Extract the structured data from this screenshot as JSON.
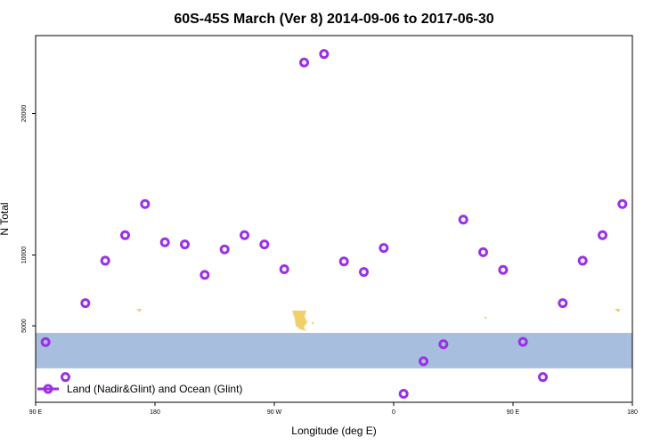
{
  "chart_data": {
    "type": "scatter",
    "title": "60S-45S March (Ver 8)   2014-09-06 to 2017-06-30",
    "xlabel": "Longitude (deg E)",
    "ylabel": "N Total",
    "xlim": [
      90,
      540
    ],
    "ylim": [
      -400,
      25500
    ],
    "x_ticks": [
      {
        "value": 90,
        "label": "90 E"
      },
      {
        "value": 180,
        "label": "180"
      },
      {
        "value": 270,
        "label": "90 W"
      },
      {
        "value": 360,
        "label": "0"
      },
      {
        "value": 450,
        "label": "90 E"
      },
      {
        "value": 540,
        "label": "180"
      }
    ],
    "y_ticks": [
      {
        "value": 5000,
        "label": "5000"
      },
      {
        "value": 10000,
        "label": "10000"
      },
      {
        "value": 20000,
        "label": "20000"
      }
    ],
    "grid": false,
    "legend_position": "bottom-left",
    "series": [
      {
        "name": "Land (Nadir&Glint) and Ocean (Glint)",
        "color": "#9b30e6",
        "points": [
          {
            "x": 97.5,
            "y": 3850
          },
          {
            "x": 112.5,
            "y": 1380
          },
          {
            "x": 127.5,
            "y": 6600
          },
          {
            "x": 142.5,
            "y": 9600
          },
          {
            "x": 157.5,
            "y": 11400
          },
          {
            "x": 172.5,
            "y": 13600
          },
          {
            "x": 187.5,
            "y": 10900
          },
          {
            "x": 202.5,
            "y": 10750
          },
          {
            "x": 217.5,
            "y": 8600
          },
          {
            "x": 232.5,
            "y": 10400
          },
          {
            "x": 247.5,
            "y": 11400
          },
          {
            "x": 262.5,
            "y": 10750
          },
          {
            "x": 277.5,
            "y": 9000
          },
          {
            "x": 292.5,
            "y": 23600
          },
          {
            "x": 307.5,
            "y": 24200
          },
          {
            "x": 322.5,
            "y": 9550
          },
          {
            "x": 337.5,
            "y": 8800
          },
          {
            "x": 352.5,
            "y": 10500
          },
          {
            "x": 367.5,
            "y": 200
          },
          {
            "x": 382.5,
            "y": 2500
          },
          {
            "x": 397.5,
            "y": 3700
          },
          {
            "x": 412.5,
            "y": 12500
          },
          {
            "x": 427.5,
            "y": 10200
          },
          {
            "x": 442.5,
            "y": 8950
          },
          {
            "x": 457.5,
            "y": 3870
          },
          {
            "x": 472.5,
            "y": 1380
          },
          {
            "x": 487.5,
            "y": 6600
          },
          {
            "x": 502.5,
            "y": 9600
          },
          {
            "x": 517.5,
            "y": 11400
          },
          {
            "x": 532.5,
            "y": 13600
          }
        ]
      }
    ],
    "background_band": {
      "y_min": 2000,
      "y_max": 4500,
      "color": "#a8bedf",
      "land_color": "#f3cf6b"
    }
  }
}
